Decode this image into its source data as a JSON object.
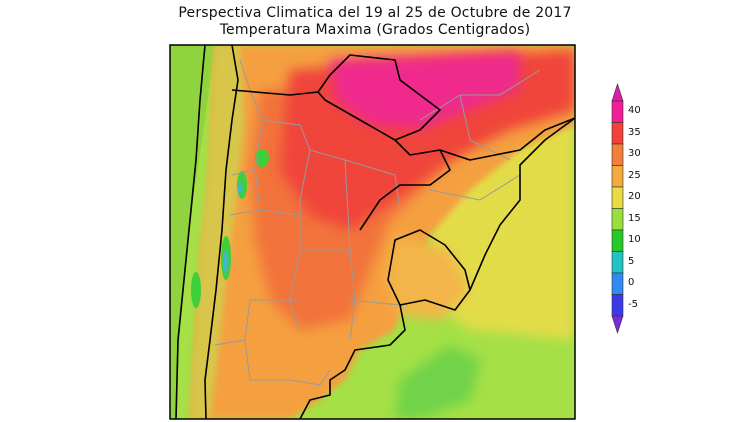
{
  "header": {
    "title": "Perspectiva Climatica del 19 al 25 de Octubre de 2017",
    "subtitle": "Temperatura Maxima (Grados Centigrados)"
  },
  "colorbar": {
    "levels": [
      {
        "label": "40",
        "color": "#f21e96"
      },
      {
        "label": "35",
        "color": "#f3413a"
      },
      {
        "label": "30",
        "color": "#f47e3a"
      },
      {
        "label": "25",
        "color": "#f3ab3f"
      },
      {
        "label": "20",
        "color": "#eadb46"
      },
      {
        "label": "15",
        "color": "#9ade3c"
      },
      {
        "label": "10",
        "color": "#26c926"
      },
      {
        "label": "5",
        "color": "#24c3c3"
      },
      {
        "label": "0",
        "color": "#2f8bf3"
      },
      {
        "label": "-5",
        "color": "#3a3ae8"
      }
    ],
    "top_color": "#e01ca8",
    "bottom_color": "#7a2bd8"
  },
  "map_colors": {
    "ocean_south": "#a4e046",
    "ocean_east": "#e3dc4a",
    "pacific": "#8fd43e",
    "andes": "#d7c64a",
    "orange": "#f4a03f",
    "light_orange": "#f3b548",
    "red_orange": "#f2733b",
    "red": "#f0443a",
    "magenta": "#ef2a8c",
    "green": "#3fcf3a",
    "cyan": "#3fb9c9",
    "border": "#000000",
    "province": "#9a9a9a"
  }
}
